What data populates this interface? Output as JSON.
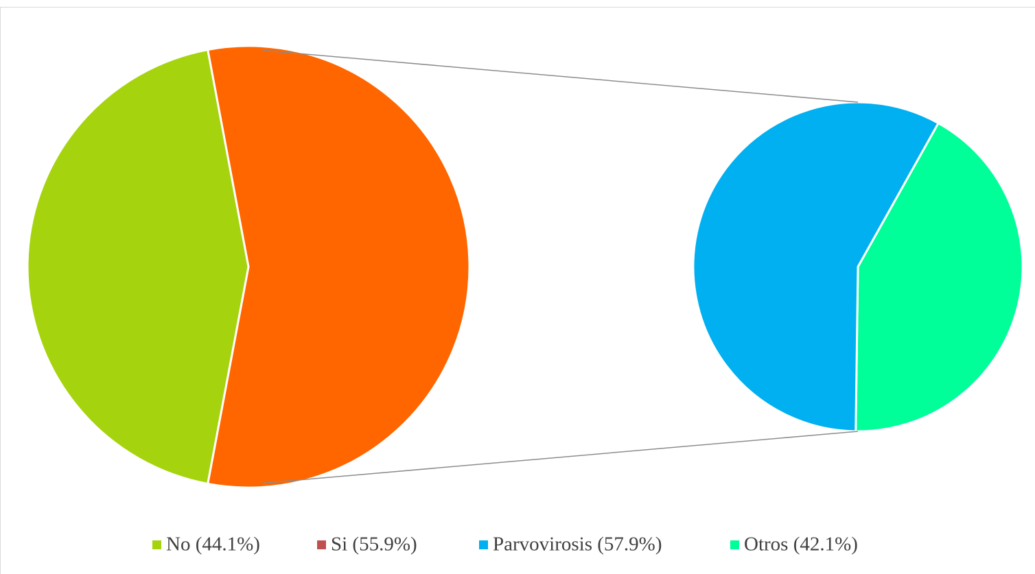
{
  "chart_data": {
    "type": "pie_of_pie",
    "main": {
      "values": [
        44.1,
        55.9
      ],
      "colors": [
        "#a5d40e",
        "#ff6600"
      ]
    },
    "secondary": {
      "values": [
        57.9,
        42.1
      ],
      "colors": [
        "#00b0f0",
        "#00ff99"
      ]
    },
    "legend": [
      {
        "label": "No (44.1%)",
        "color": "#a5d40e"
      },
      {
        "label": "Si (55.9%)",
        "color": "#c0504d"
      },
      {
        "label": "Parvovirosis (57.9%)",
        "color": "#00b0f0"
      },
      {
        "label": "Otros (42.1%)",
        "color": "#00ff99"
      }
    ]
  }
}
